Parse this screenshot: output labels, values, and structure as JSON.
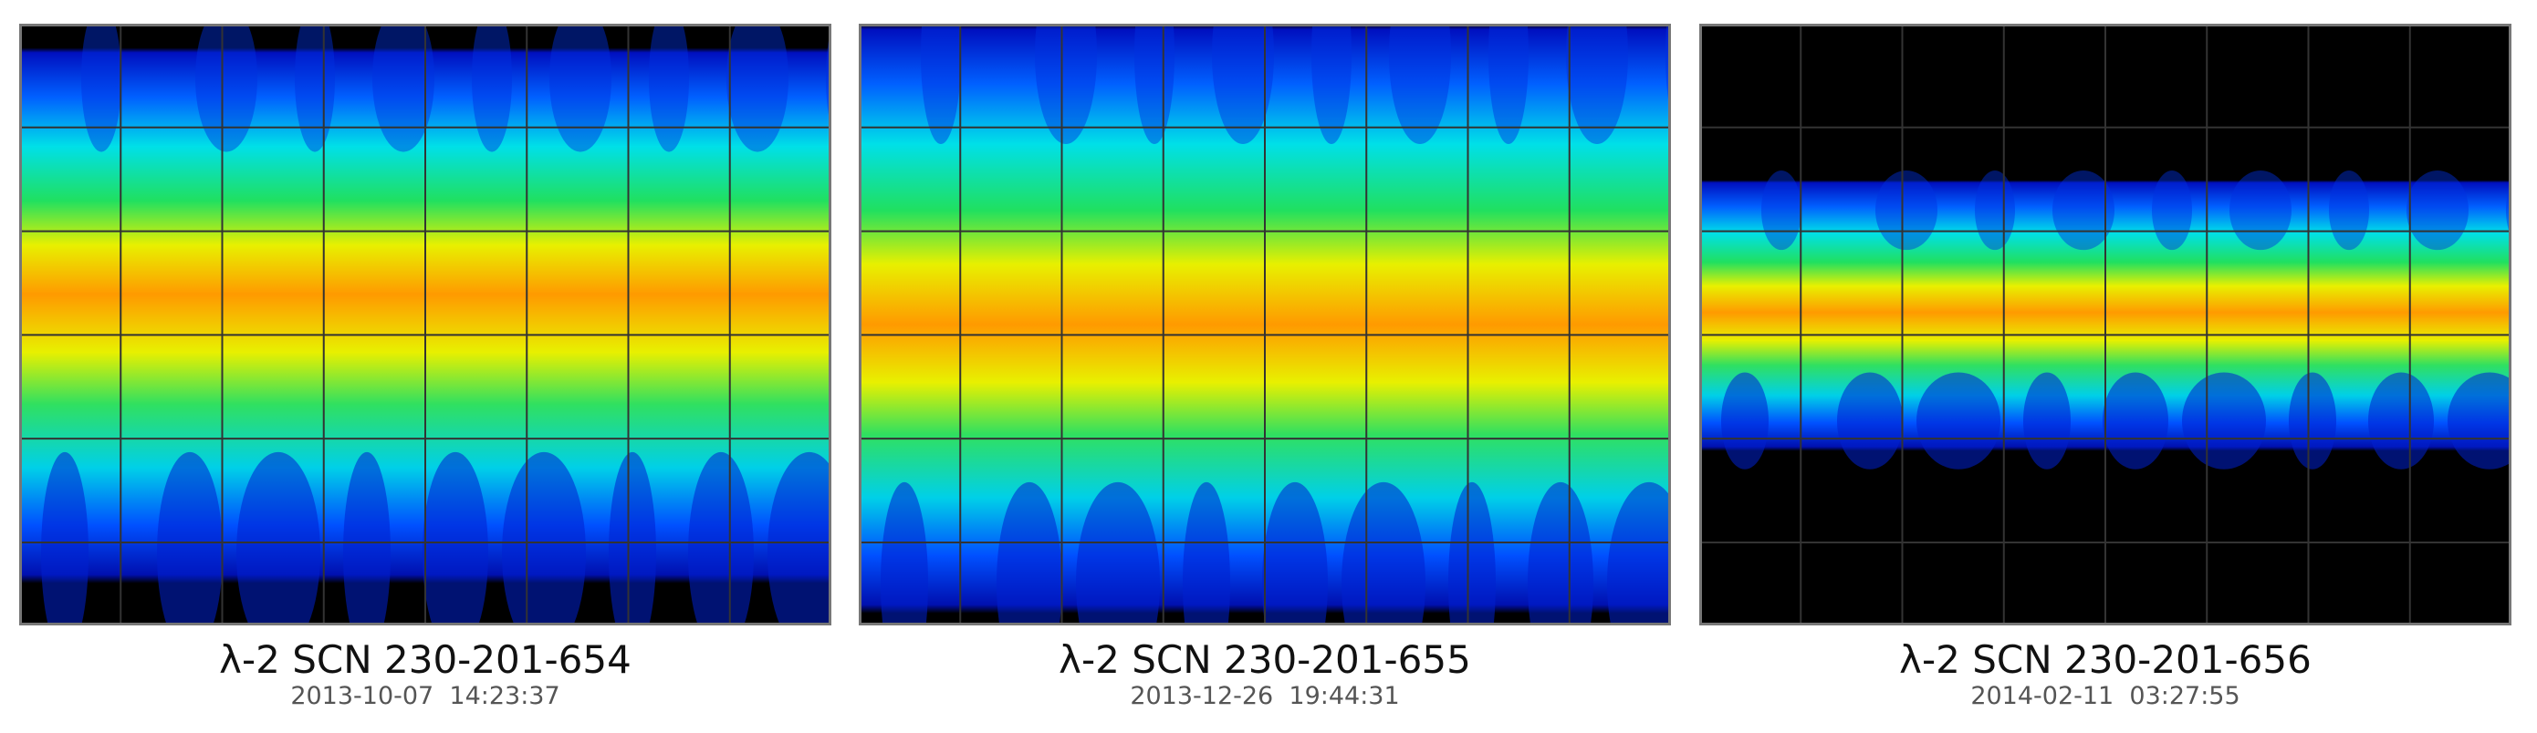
{
  "panels": [
    {
      "title": "λ-2 SCN 230-201-654",
      "timestamp": "2013-10-07  14:23:37"
    },
    {
      "title": "λ-2 SCN 230-201-655",
      "timestamp": "2013-12-26  19:44:31"
    },
    {
      "title": "λ-2 SCN 230-201-656",
      "timestamp": "2014-02-11  03:27:55"
    }
  ]
}
